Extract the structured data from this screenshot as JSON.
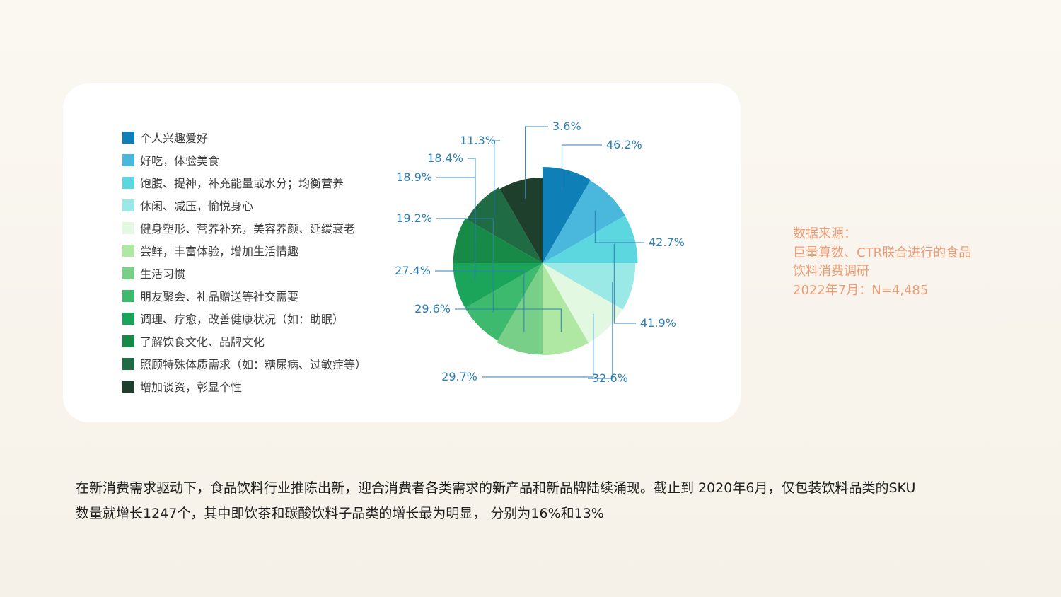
{
  "source": {
    "label": "数据来源：",
    "line1": "巨量算数、CTR联合进行的食品",
    "line2": "饮料消费调研",
    "line3": "2022年7月：N=4,485"
  },
  "body": {
    "line1": "在新消费需求驱动下，食品饮料行业推陈出新，迎合消费者各类需求的新产品和新品牌陆续涌现。截止到 2020年6月，仅包装饮料品类的SKU",
    "line2": "数量就增长1247个，其中即饮茶和碳酸饮料子品类的增长最为明显， 分别为16%和13%"
  },
  "chart_data": {
    "type": "pie",
    "title": "",
    "categories": [
      "个人兴趣爱好",
      "好吃，体验美食",
      "饱腹、提神，补充能量或水分；均衡营养",
      "休闲、减压，愉悦身心",
      "健身塑形、营养补充，美容养颜、延缓衰老",
      "尝鲜，丰富体验，增加生活情趣",
      "生活习惯",
      "朋友聚会、礼品赠送等社交需要",
      "调理、疗愈，改善健康状况（如：助眠）",
      "了解饮食文化、品牌文化",
      "照顾特殊体质需求（如：糖尿病、过敏症等）",
      "增加谈资，彰显个性"
    ],
    "values": [
      46.2,
      42.7,
      41.9,
      32.6,
      29.7,
      29.6,
      27.4,
      19.2,
      18.9,
      18.4,
      11.3,
      3.6
    ],
    "value_labels": [
      "46.2%",
      "42.7%",
      "41.9%",
      "32.6%",
      "29.7%",
      "29.6%",
      "27.4%",
      "19.2%",
      "18.9%",
      "18.4%",
      "11.3%",
      "3.6%"
    ],
    "colors": [
      "#0f7fb8",
      "#4ab8dc",
      "#5cd6df",
      "#9be9e6",
      "#e2f8e1",
      "#aee8a3",
      "#78d088",
      "#3dba6e",
      "#1aa55a",
      "#188a48",
      "#1f6b43",
      "#1d3f2c"
    ],
    "legend_position": "left",
    "label_color": "#2f7fb5"
  }
}
